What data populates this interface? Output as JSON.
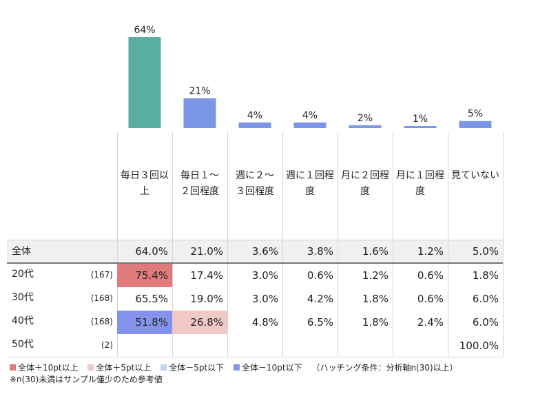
{
  "colors": {
    "teal": "#5aada1",
    "blue_bar": "#7b96e6",
    "plus10": "#e07b7b",
    "plus5": "#f0c8c6",
    "minus5": "#c5d4f2",
    "minus10": "#8393ec"
  },
  "chart_data": {
    "type": "bar",
    "categories": [
      "毎日３回以上",
      "毎日１～２回程度",
      "週に２～３回程度",
      "週に１回程度",
      "月に２回程度",
      "月に１回程度",
      "見ていない"
    ],
    "values": [
      64,
      21,
      4,
      4,
      2,
      1,
      5
    ],
    "value_labels": [
      "64%",
      "21%",
      "4%",
      "4%",
      "2%",
      "1%",
      "5%"
    ],
    "bar_colors": [
      "#5aada1",
      "#7b96e6",
      "#7b96e6",
      "#7b96e6",
      "#7b96e6",
      "#7b96e6",
      "#7b96e6"
    ],
    "ylim": [
      0,
      64
    ]
  },
  "table": {
    "categories": [
      [
        "毎日３回以",
        "上"
      ],
      [
        "毎日１～",
        "２回程度"
      ],
      [
        "週に２～",
        "３回程度"
      ],
      [
        "週に１回程",
        "度"
      ],
      [
        "月に２回程",
        "度"
      ],
      [
        "月に１回程",
        "度"
      ],
      [
        "見ていない"
      ]
    ],
    "total": {
      "label": "全体",
      "values": [
        "64.0%",
        "21.0%",
        "3.6%",
        "3.8%",
        "1.6%",
        "1.2%",
        "5.0%"
      ]
    },
    "rows": [
      {
        "label": "20代",
        "n": "(167)",
        "values": [
          "75.4%",
          "17.4%",
          "3.0%",
          "0.6%",
          "1.2%",
          "0.6%",
          "1.8%"
        ],
        "highlight": [
          "plus10",
          "",
          "",
          "",
          "",
          "",
          ""
        ]
      },
      {
        "label": "30代",
        "n": "(168)",
        "values": [
          "65.5%",
          "19.0%",
          "3.0%",
          "4.2%",
          "1.8%",
          "0.6%",
          "6.0%"
        ],
        "highlight": [
          "",
          "",
          "",
          "",
          "",
          "",
          ""
        ]
      },
      {
        "label": "40代",
        "n": "(168)",
        "values": [
          "51.8%",
          "26.8%",
          "4.8%",
          "6.5%",
          "1.8%",
          "2.4%",
          "6.0%"
        ],
        "highlight": [
          "minus10",
          "plus5",
          "",
          "",
          "",
          "",
          ""
        ]
      },
      {
        "label": "50代",
        "n": "(2)",
        "values": [
          "",
          "",
          "",
          "",
          "",
          "",
          "100.0%"
        ],
        "highlight": [
          "",
          "",
          "",
          "",
          "",
          "",
          ""
        ]
      }
    ]
  },
  "legend": {
    "items": [
      {
        "key": "plus10",
        "label": "全体＋10pt以上"
      },
      {
        "key": "plus5",
        "label": "全体＋5pt以上"
      },
      {
        "key": "minus5",
        "label": "全体－5pt以下"
      },
      {
        "key": "minus10",
        "label": "全体－10pt以下"
      }
    ],
    "condition": "（ハッチング条件：分析軸n(30)以上）",
    "note": "※n(30)未満はサンプル僅少のため参考値"
  }
}
